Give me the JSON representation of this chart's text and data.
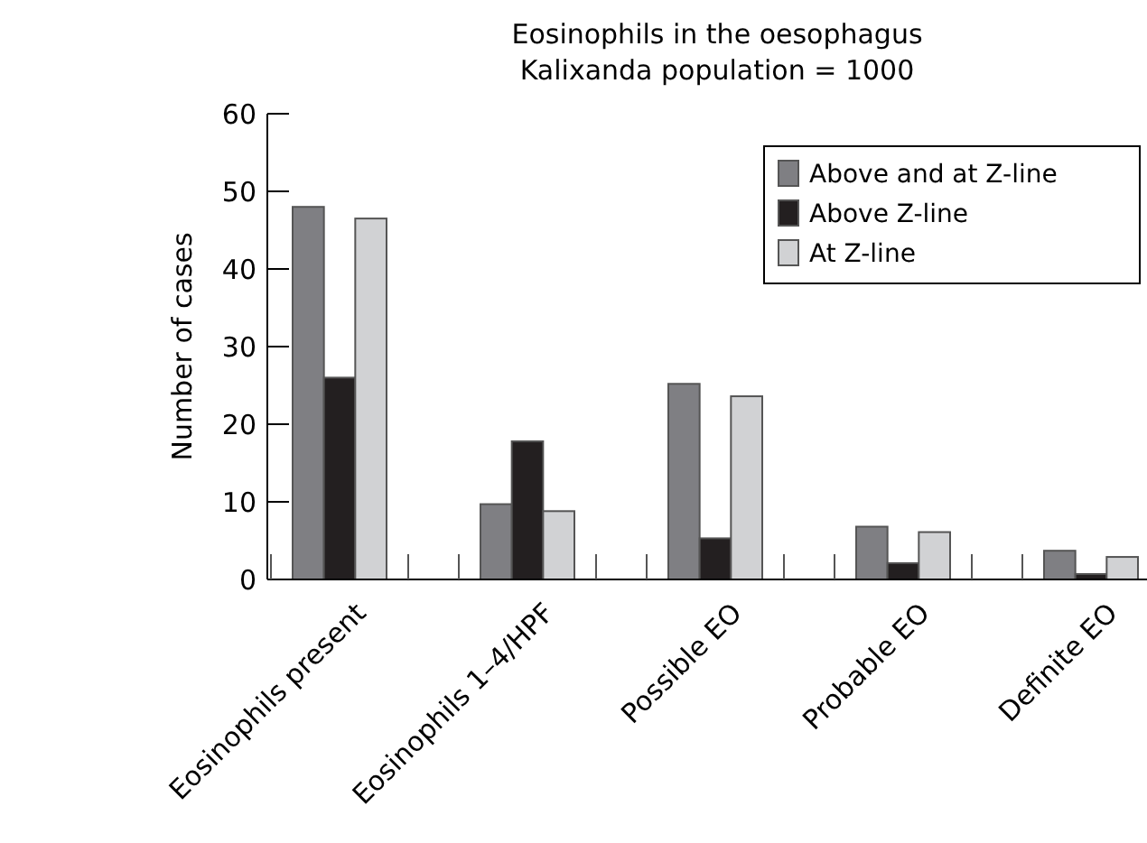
{
  "chart_data": {
    "type": "bar",
    "title": "Eosinophils in the oesophagus\nKalixanda population = 1000",
    "ylabel": "Number of cases",
    "categories": [
      "Eosinophils present",
      "Eosinophils 1–4/HPF",
      "Possible EO",
      "Probable EO",
      "Definite EO"
    ],
    "series": [
      {
        "name": "Above and at Z-line",
        "color": "#7f7f83",
        "values": [
          48,
          9.7,
          25.2,
          6.8,
          3.7
        ]
      },
      {
        "name": "Above Z-line",
        "color": "#231f20",
        "values": [
          26,
          17.8,
          5.3,
          2.1,
          0.7
        ]
      },
      {
        "name": "At Z-line",
        "color": "#d1d2d4",
        "values": [
          46.5,
          8.8,
          23.6,
          6.1,
          2.9
        ]
      }
    ],
    "ylim": [
      0,
      60
    ],
    "yticks": [
      0,
      10,
      20,
      30,
      40,
      50,
      60
    ],
    "grid": false,
    "legend": "top right"
  }
}
